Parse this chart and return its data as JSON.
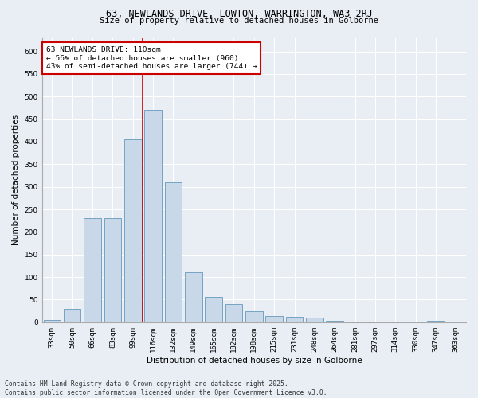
{
  "title1": "63, NEWLANDS DRIVE, LOWTON, WARRINGTON, WA3 2RJ",
  "title2": "Size of property relative to detached houses in Golborne",
  "xlabel": "Distribution of detached houses by size in Golborne",
  "ylabel": "Number of detached properties",
  "categories": [
    "33sqm",
    "50sqm",
    "66sqm",
    "83sqm",
    "99sqm",
    "116sqm",
    "132sqm",
    "149sqm",
    "165sqm",
    "182sqm",
    "198sqm",
    "215sqm",
    "231sqm",
    "248sqm",
    "264sqm",
    "281sqm",
    "297sqm",
    "314sqm",
    "330sqm",
    "347sqm",
    "363sqm"
  ],
  "values": [
    5,
    30,
    230,
    230,
    405,
    470,
    310,
    110,
    57,
    40,
    25,
    14,
    12,
    10,
    4,
    0,
    0,
    0,
    0,
    4,
    0
  ],
  "bar_color": "#c8d8e8",
  "bar_edgecolor": "#6699bb",
  "background_color": "#e8eef4",
  "grid_color": "#ffffff",
  "annotation_text": "63 NEWLANDS DRIVE: 110sqm\n← 56% of detached houses are smaller (960)\n43% of semi-detached houses are larger (744) →",
  "annotation_box_color": "#ffffff",
  "annotation_box_edgecolor": "#cc0000",
  "vline_x": 5.0,
  "vline_color": "#cc0000",
  "ylim": [
    0,
    630
  ],
  "yticks": [
    0,
    50,
    100,
    150,
    200,
    250,
    300,
    350,
    400,
    450,
    500,
    550,
    600
  ],
  "footer_text": "Contains HM Land Registry data © Crown copyright and database right 2025.\nContains public sector information licensed under the Open Government Licence v3.0.",
  "title1_fontsize": 8.5,
  "title2_fontsize": 7.5,
  "xlabel_fontsize": 7.5,
  "ylabel_fontsize": 7.5,
  "tick_fontsize": 6.5,
  "annotation_fontsize": 6.8,
  "footer_fontsize": 5.8
}
